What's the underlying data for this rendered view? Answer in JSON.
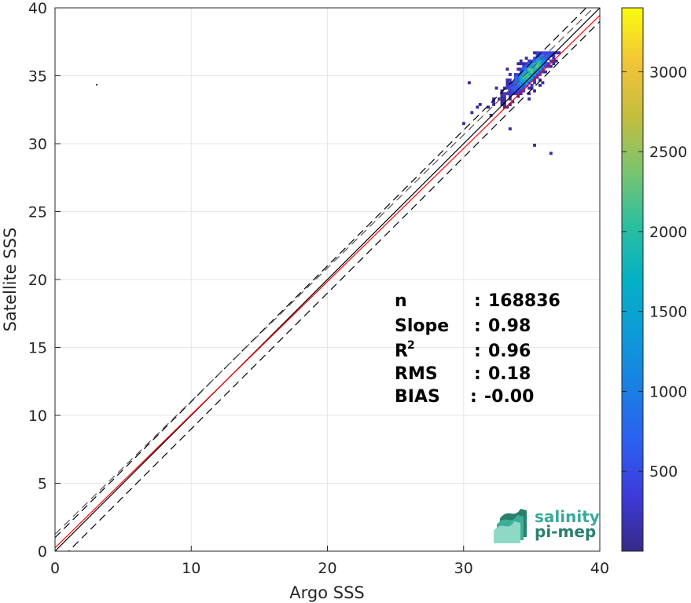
{
  "chart_data": {
    "type": "heatmap",
    "subtype": "density scatter (2D histogram)",
    "xlabel": "Argo SSS",
    "ylabel": "Satellite SSS",
    "xlim": [
      0,
      40
    ],
    "ylim": [
      0,
      40
    ],
    "x_ticks": [
      "0",
      "10",
      "20",
      "30",
      "40"
    ],
    "y_ticks": [
      "0",
      "5",
      "10",
      "15",
      "20",
      "25",
      "30",
      "35",
      "40"
    ],
    "grid": true,
    "colorbar": {
      "colormap": "parula",
      "range": [
        0,
        3400
      ],
      "ticks": [
        "500",
        "1000",
        "1500",
        "2000",
        "2500",
        "3000"
      ],
      "tick_values": [
        500,
        1000,
        1500,
        2000,
        2500,
        3000
      ]
    },
    "density_cloud": {
      "x_range": [
        29.5,
        37.0
      ],
      "y_range": [
        28.8,
        36.8
      ],
      "peak_center": [
        34.8,
        35.2
      ],
      "outlier_point": [
        3.0,
        34.4
      ]
    },
    "lines": {
      "one_to_one": {
        "slope": 1,
        "intercept": 0,
        "color": "#000000",
        "style": "solid"
      },
      "upper_bound": {
        "slope": 1,
        "intercept": 1.0,
        "color": "#000000",
        "style": "dashed"
      },
      "lower_bound": {
        "slope": 1,
        "intercept": -1.0,
        "color": "#000000",
        "style": "dashed"
      },
      "regression": {
        "slope": 0.98,
        "intercept": 0.25,
        "color": "#ff0000",
        "style": "solid"
      },
      "regression_upper": {
        "slope": 0.98,
        "intercept": 1.25,
        "color": "#555555",
        "style": "dashed"
      }
    },
    "stats": [
      {
        "key": "n",
        "sep": ": ",
        "value": "168836"
      },
      {
        "key": "Slope",
        "sep": ": ",
        "value": "0.98"
      },
      {
        "key": "R",
        "sup": "2",
        "sep": ": ",
        "value": "0.96"
      },
      {
        "key": "RMS",
        "sep": ": ",
        "value": "0.18"
      },
      {
        "key": "BIAS",
        "sep": ": ",
        "value": "-0.00"
      }
    ]
  },
  "logo": {
    "line1": "salinity",
    "line2": "pi-mep",
    "colors": [
      "#8fd8c6",
      "#3fae97",
      "#2a7f6d"
    ]
  }
}
